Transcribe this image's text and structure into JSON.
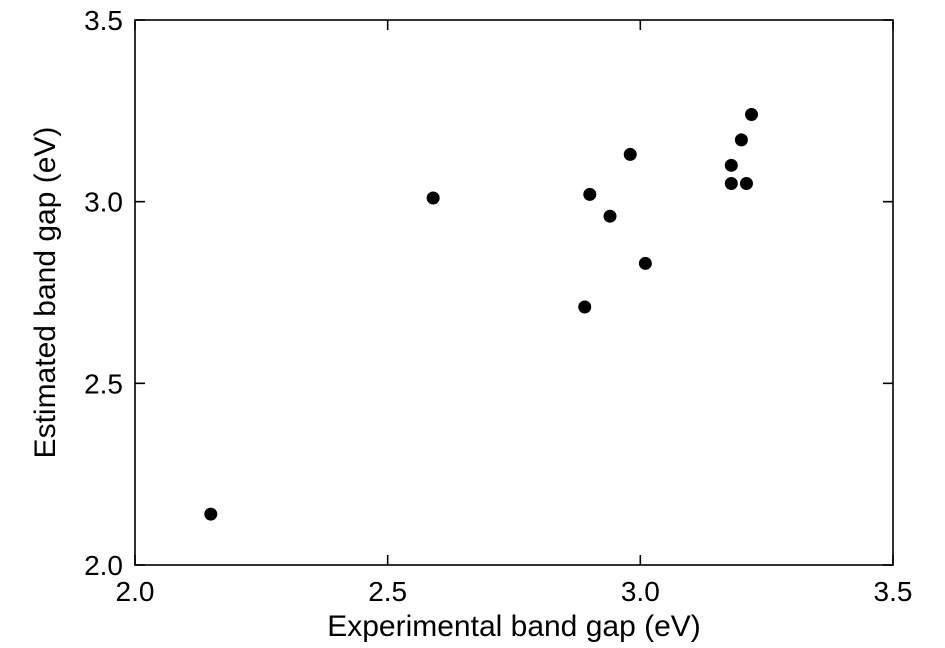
{
  "chart_data": {
    "type": "scatter",
    "title": "",
    "xlabel": "Experimental band gap (eV)",
    "ylabel": "Estimated band gap (eV)",
    "xlim": [
      2.0,
      3.5
    ],
    "ylim": [
      2.0,
      3.5
    ],
    "xticks": [
      2.0,
      2.5,
      3.0,
      3.5
    ],
    "yticks": [
      2.0,
      2.5,
      3.0,
      3.5
    ],
    "xtick_labels": [
      "2.0",
      "2.5",
      "3.0",
      "3.5"
    ],
    "ytick_labels": [
      "2.0",
      "2.5",
      "3.0",
      "3.5"
    ],
    "grid": false,
    "legend": "none",
    "marker_color": "#000000",
    "frame_color": "#000000",
    "series": [
      {
        "points": [
          {
            "x": 2.15,
            "y": 2.14
          },
          {
            "x": 2.59,
            "y": 3.01
          },
          {
            "x": 2.89,
            "y": 2.71
          },
          {
            "x": 2.9,
            "y": 3.02
          },
          {
            "x": 2.94,
            "y": 2.96
          },
          {
            "x": 2.98,
            "y": 3.13
          },
          {
            "x": 3.01,
            "y": 2.83
          },
          {
            "x": 3.18,
            "y": 3.05
          },
          {
            "x": 3.18,
            "y": 3.1
          },
          {
            "x": 3.2,
            "y": 3.17
          },
          {
            "x": 3.21,
            "y": 3.05
          },
          {
            "x": 3.22,
            "y": 3.24
          }
        ]
      }
    ]
  }
}
